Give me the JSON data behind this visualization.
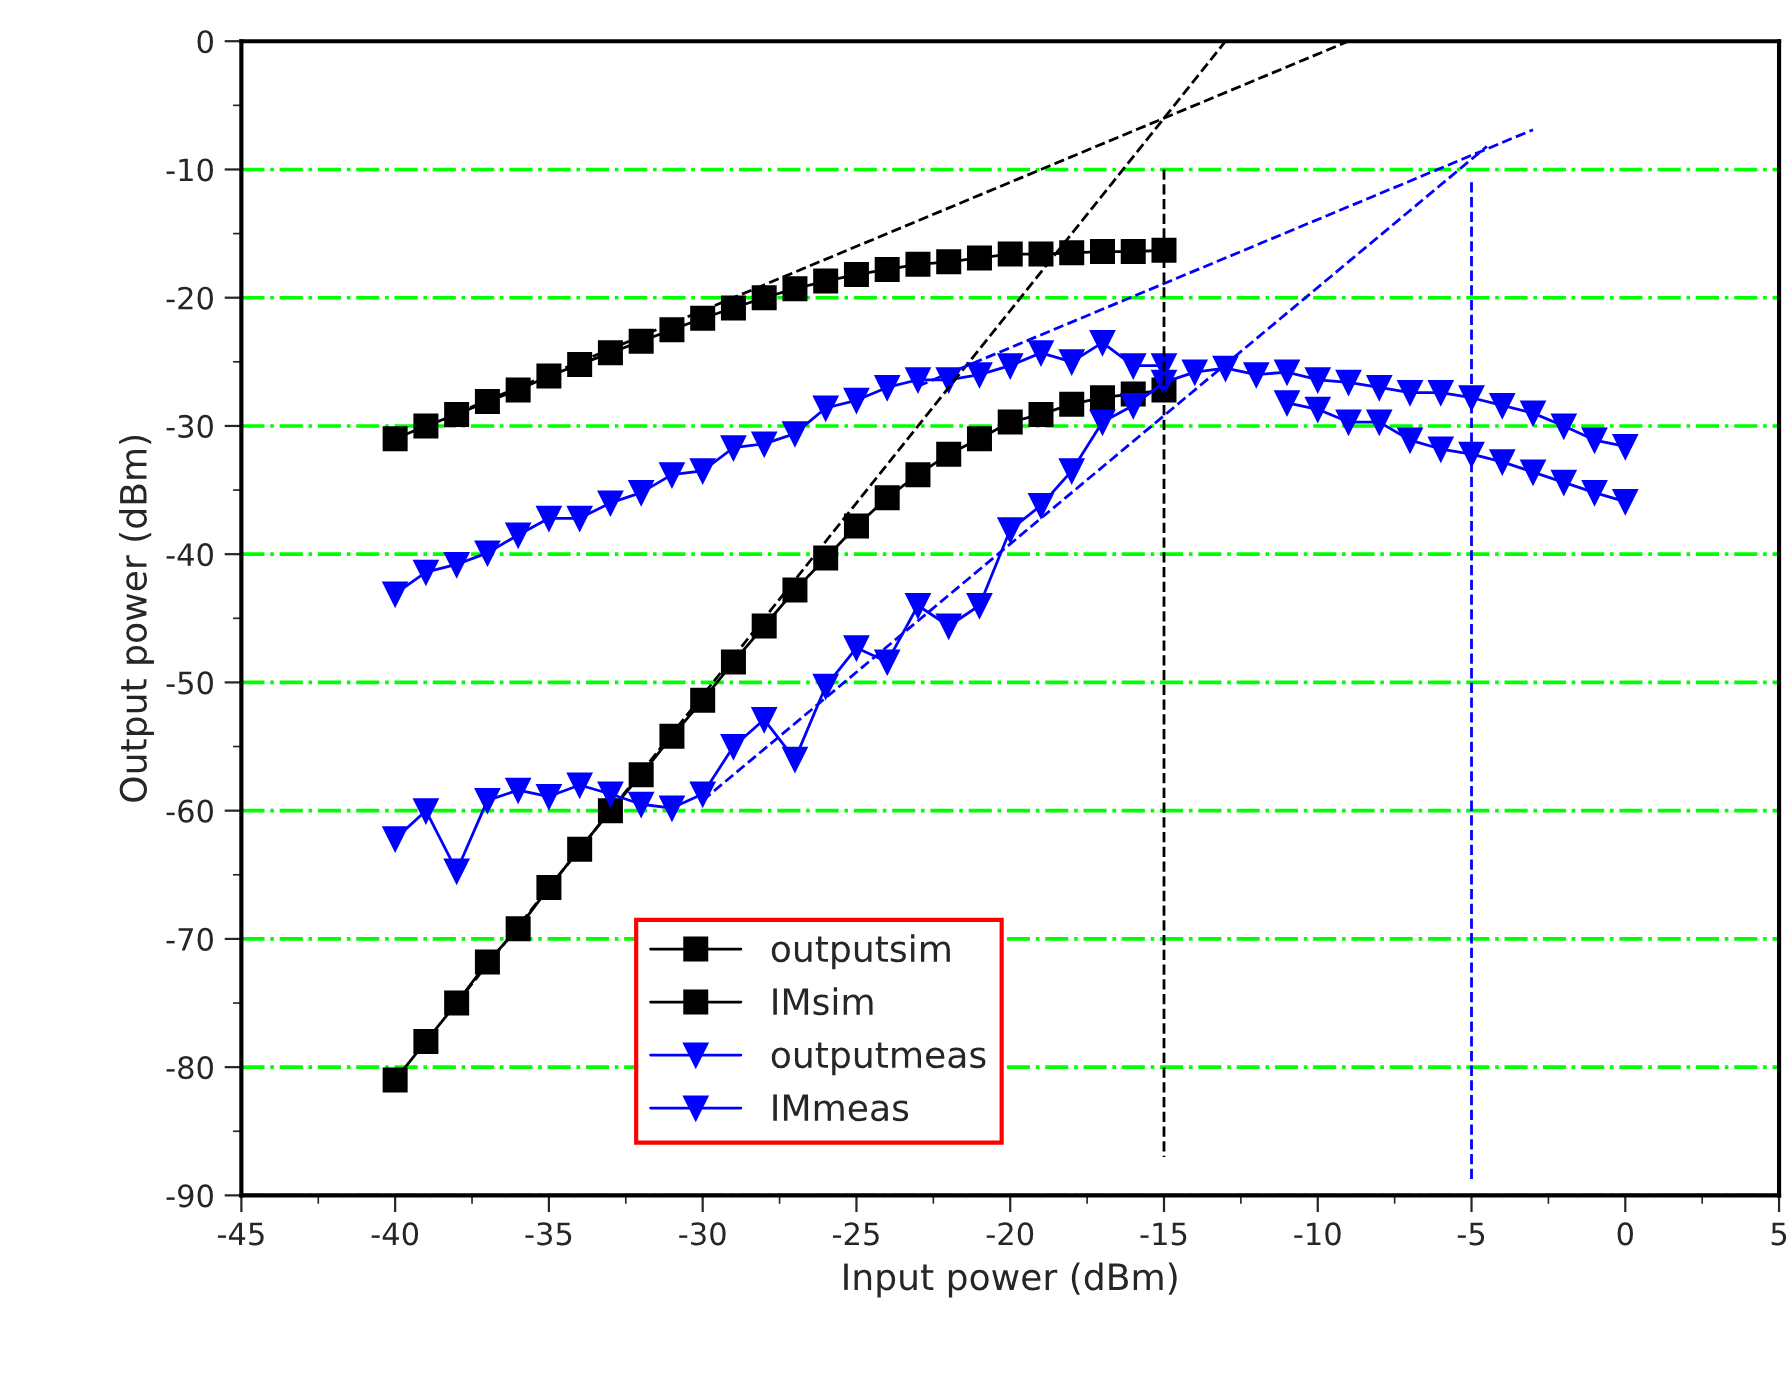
{
  "chart_data": {
    "type": "line",
    "xlabel": "Input power (dBm)",
    "ylabel": "Output power (dBm)",
    "xlim": [
      -45,
      5
    ],
    "xticks": [
      -45,
      -40,
      -35,
      -30,
      -25,
      -20,
      -15,
      -10,
      -5,
      0,
      5
    ],
    "ylim": [
      -90,
      0
    ],
    "yticks": [
      -90,
      -80,
      -70,
      -60,
      -50,
      -40,
      -30,
      -20,
      -10,
      0
    ],
    "grid": "y",
    "legend": "bottom left",
    "series": [
      {
        "name": "outputsim",
        "color": "#000000",
        "marker": "square",
        "line_style": "solid",
        "x": [
          -40,
          -39,
          -38,
          -37,
          -36,
          -35,
          -34,
          -33,
          -32,
          -31,
          -30,
          -29,
          -28,
          -27,
          -26,
          -25,
          -24,
          -23,
          -22,
          -21,
          -20,
          -19,
          -18,
          -17,
          -16,
          -15
        ],
        "values": [
          -31,
          -30,
          -29.1,
          -28.1,
          -27.2,
          -26.1,
          -25.2,
          -24.3,
          -23.4,
          -22.5,
          -21.6,
          -20.8,
          -20,
          -19.3,
          -18.7,
          -18.2,
          -17.8,
          -17.4,
          -17.2,
          -16.9,
          -16.6,
          -16.6,
          -16.5,
          -16.4,
          -16.4,
          -16.3
        ]
      },
      {
        "name": "IMsim",
        "color": "#000000",
        "marker": "square",
        "line_style": "solid",
        "x": [
          -40,
          -39,
          -38,
          -37,
          -36,
          -35,
          -34,
          -33,
          -32,
          -31,
          -30,
          -29,
          -28,
          -27,
          -26,
          -25,
          -24,
          -23,
          -22,
          -21,
          -20,
          -19,
          -18,
          -17,
          -16,
          -15
        ],
        "values": [
          -81,
          -78,
          -75,
          -71.8,
          -69.2,
          -66,
          -63,
          -60,
          -57.2,
          -54.2,
          -51.4,
          -48.4,
          -45.6,
          -42.8,
          -40.3,
          -37.8,
          -35.6,
          -33.8,
          -32.2,
          -31,
          -29.7,
          -29.1,
          -28.3,
          -27.8,
          -27.5,
          -27.2
        ]
      },
      {
        "name": "outputmeas",
        "color": "#0000ff",
        "marker": "triangle",
        "line_style": "solid",
        "x": [
          -40,
          -39,
          -38,
          -37,
          -36,
          -35,
          -34,
          -33,
          -32,
          -31,
          -30,
          -29,
          -28,
          -27,
          -26,
          -25,
          -24,
          -23,
          -22,
          -21,
          -20,
          -19,
          -18,
          -17,
          -16,
          -15,
          -14,
          -13,
          -12,
          -11,
          -10,
          -9,
          -8,
          -7,
          -6,
          -5,
          -4,
          -3,
          -2,
          -1,
          0
        ],
        "values": [
          -43.1,
          -41.4,
          -40.8,
          -39.9,
          -38.5,
          -37.2,
          -37.2,
          -36,
          -35.2,
          -33.8,
          -33.5,
          -31.7,
          -31.4,
          -30.6,
          -28.6,
          -28,
          -27,
          -26.4,
          -26.4,
          -26,
          -25.3,
          -24.3,
          -25,
          -23.5,
          -25.3,
          -25.3,
          null,
          null,
          null,
          -28.2,
          -28.7,
          -29.7,
          -29.7,
          -31.1,
          -31.8,
          -32.2,
          -32.8,
          -33.6,
          -34.4,
          -35.2,
          -35.9
        ]
      },
      {
        "name": "IMmeas",
        "color": "#0000ff",
        "marker": "triangle",
        "line_style": "solid",
        "x": [
          -40,
          -39,
          -38,
          -37,
          -36,
          -35,
          -34,
          -33,
          -32,
          -31,
          -30,
          -29,
          -28,
          -27,
          -26,
          -25,
          -24,
          -23,
          -22,
          -21,
          -20,
          -19,
          -18,
          -17,
          -16,
          -15,
          -14,
          -13,
          -12,
          -11,
          -10,
          -9,
          -8,
          -7,
          -6,
          -5,
          -4,
          -3,
          -2,
          -1,
          0
        ],
        "values": [
          -62.2,
          -60,
          -64.7,
          -59.2,
          -58.4,
          -58.9,
          -58,
          -58.7,
          -59.5,
          -59.8,
          -58.7,
          -55,
          -52.9,
          -56,
          -50.3,
          -47.3,
          -48.4,
          -44,
          -45.6,
          -44,
          -38.1,
          -36.2,
          -33.5,
          -29.7,
          -28.4,
          -26.6,
          -25.8,
          -25.5,
          -26,
          -25.8,
          -26.4,
          -26.6,
          -27,
          -27.4,
          -27.4,
          -27.8,
          -28.4,
          -29,
          -30,
          -31.1,
          -31.6
        ]
      },
      {
        "color": "#000000",
        "marker": "none",
        "line_style": "dashed",
        "x": [
          -38,
          -9
        ],
        "values": [
          -29,
          0
        ]
      },
      {
        "color": "#000000",
        "marker": "none",
        "line_style": "dashed",
        "x": [
          -38,
          -13
        ],
        "values": [
          -75,
          0
        ]
      },
      {
        "color": "#0000ff",
        "marker": "none",
        "line_style": "dashed",
        "x": [
          -23,
          -3
        ],
        "values": [
          -26.9,
          -6.9
        ]
      },
      {
        "color": "#0000ff",
        "marker": "none",
        "line_style": "dashed",
        "x": [
          -30,
          -4.5
        ],
        "values": [
          -59.2,
          -8.2
        ]
      },
      {
        "color": "#000000",
        "marker": "none",
        "line_style": "dashed",
        "x": [
          -15,
          -15
        ],
        "values": [
          -10,
          -87
        ]
      },
      {
        "color": "#0000ff",
        "marker": "none",
        "line_style": "dashed",
        "x": [
          -5,
          -5
        ],
        "values": [
          -11,
          -89
        ]
      }
    ]
  }
}
